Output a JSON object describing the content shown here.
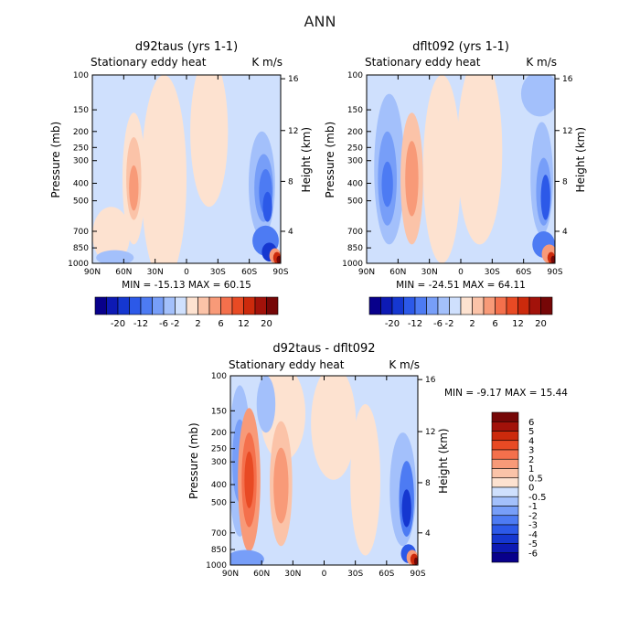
{
  "main_title": "ANN",
  "chart_data": [
    {
      "type": "heatmap",
      "id": "p1",
      "title": "d92taus (yrs 1-1)",
      "subtitle_left": "Stationary eddy heat",
      "subtitle_right": "K m/s",
      "ylabel": "Pressure (mb)",
      "ylabel_right": "Height (km)",
      "x_ticks": [
        "90N",
        "60N",
        "30N",
        "0",
        "30S",
        "60S",
        "90S"
      ],
      "y_ticks": [
        "100",
        "150",
        "200",
        "250",
        "300",
        "400",
        "500",
        "700",
        "850",
        "1000"
      ],
      "y_ticks_right": [
        "16",
        "12",
        "8",
        "4"
      ],
      "xlim": [
        90,
        -90
      ],
      "ylim": [
        1000,
        100
      ],
      "stats": "MIN = -15.13   MAX =  60.15",
      "min": -15.13,
      "max": 60.15,
      "colorbar": {
        "orientation": "horizontal",
        "labels": [
          "-20",
          "-12",
          "-6",
          "-2",
          "2",
          "6",
          "12",
          "20"
        ]
      }
    },
    {
      "type": "heatmap",
      "id": "p2",
      "title": "dflt092 (yrs 1-1)",
      "subtitle_left": "Stationary eddy heat",
      "subtitle_right": "K m/s",
      "ylabel": "Pressure (mb)",
      "ylabel_right": "Height (km)",
      "x_ticks": [
        "90N",
        "60N",
        "30N",
        "0",
        "30S",
        "60S",
        "90S"
      ],
      "y_ticks": [
        "100",
        "150",
        "200",
        "250",
        "300",
        "400",
        "500",
        "700",
        "850",
        "1000"
      ],
      "y_ticks_right": [
        "16",
        "12",
        "8",
        "4"
      ],
      "xlim": [
        90,
        -90
      ],
      "ylim": [
        1000,
        100
      ],
      "stats": "MIN = -24.51   MAX =  64.11",
      "min": -24.51,
      "max": 64.11,
      "colorbar": {
        "orientation": "horizontal",
        "labels": [
          "-20",
          "-12",
          "-6",
          "-2",
          "2",
          "6",
          "12",
          "20"
        ]
      }
    },
    {
      "type": "heatmap",
      "id": "p3",
      "title": "d92taus - dflt092",
      "subtitle_left": "Stationary eddy heat",
      "subtitle_right": "K m/s",
      "ylabel": "Pressure (mb)",
      "ylabel_right": "Height (km)",
      "x_ticks": [
        "90N",
        "60N",
        "30N",
        "0",
        "30S",
        "60S",
        "90S"
      ],
      "y_ticks": [
        "100",
        "150",
        "200",
        "250",
        "300",
        "400",
        "500",
        "700",
        "850",
        "1000"
      ],
      "y_ticks_right": [
        "16",
        "12",
        "8",
        "4"
      ],
      "xlim": [
        90,
        -90
      ],
      "ylim": [
        1000,
        100
      ],
      "stats": "MIN =   -9.17   MAX =   15.44",
      "min": -9.17,
      "max": 15.44,
      "colorbar": {
        "orientation": "vertical",
        "labels": [
          "6",
          "5",
          "4",
          "3",
          "2",
          "1",
          "0.5",
          "0",
          "-0.5",
          "-1",
          "-2",
          "-3",
          "-4",
          "-5",
          "-6"
        ]
      }
    }
  ],
  "colors": {
    "scale": [
      "#08008b",
      "#0d1ab4",
      "#1537d0",
      "#2c59e8",
      "#4d7bf3",
      "#779ef8",
      "#a3c0fb",
      "#cfe0fd",
      "#fde2d0",
      "#fbc3a8",
      "#f89a78",
      "#f4704c",
      "#e84a24",
      "#cc2a0c",
      "#a2120a",
      "#760707"
    ],
    "field_neg": "#cfe0fd",
    "field_pos": "#fde2d0"
  }
}
